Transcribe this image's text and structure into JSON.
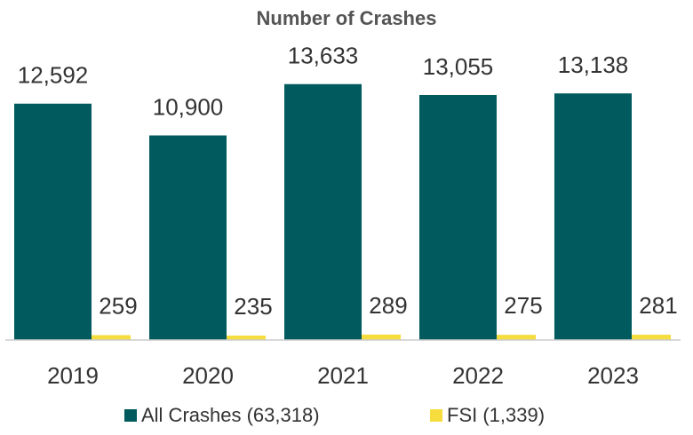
{
  "chart_data": {
    "type": "bar",
    "title": "Number of Crashes",
    "categories": [
      "2019",
      "2020",
      "2021",
      "2022",
      "2023"
    ],
    "series": [
      {
        "name": "All Crashes (63,318)",
        "color": "#005a5e",
        "values": [
          12592,
          10900,
          13633,
          13055,
          13138
        ],
        "value_labels": [
          "12,592",
          "10,900",
          "13,633",
          "13,055",
          "13,138"
        ]
      },
      {
        "name": "FSI (1,339)",
        "color": "#f6dc3c",
        "values": [
          259,
          235,
          289,
          275,
          281
        ]
      }
    ],
    "ylim": [
      0,
      14000
    ]
  }
}
